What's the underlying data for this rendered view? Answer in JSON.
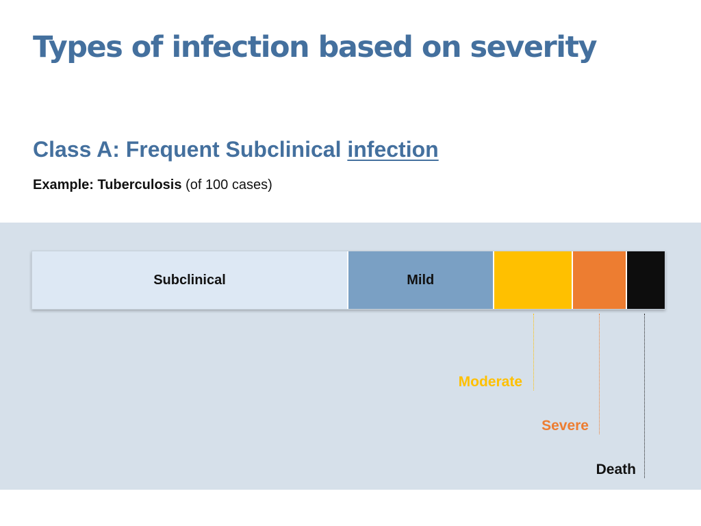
{
  "slide": {
    "title": "Types of infection based on severity",
    "subtitle_prefix": "Class A: Frequent Subclinical ",
    "subtitle_link": "infection",
    "example_bold": "Example: Tuberculosis",
    "example_rest": " (of 100 cases)"
  },
  "bar": {
    "total_cases": 100,
    "segments": [
      {
        "key": "subclinical",
        "label": "Subclinical",
        "cases": 50,
        "color": "#dde8f4"
      },
      {
        "key": "mild",
        "label": "Mild",
        "cases": 23,
        "color": "#7aa0c4"
      },
      {
        "key": "moderate",
        "label": "",
        "cases": 12.5,
        "color": "#ffc000"
      },
      {
        "key": "severe",
        "label": "",
        "cases": 8.5,
        "color": "#ed7d31"
      },
      {
        "key": "death",
        "label": "",
        "cases": 6,
        "color": "#0d0d0d"
      }
    ]
  },
  "callouts": {
    "moderate": {
      "label": "Moderate",
      "color": "#ffc000"
    },
    "severe": {
      "label": "Severe",
      "color": "#ed7d31"
    },
    "death": {
      "label": "Death",
      "color": "#111111"
    }
  },
  "colors": {
    "title": "#44709e",
    "panel_background": "#d6e0ea"
  }
}
